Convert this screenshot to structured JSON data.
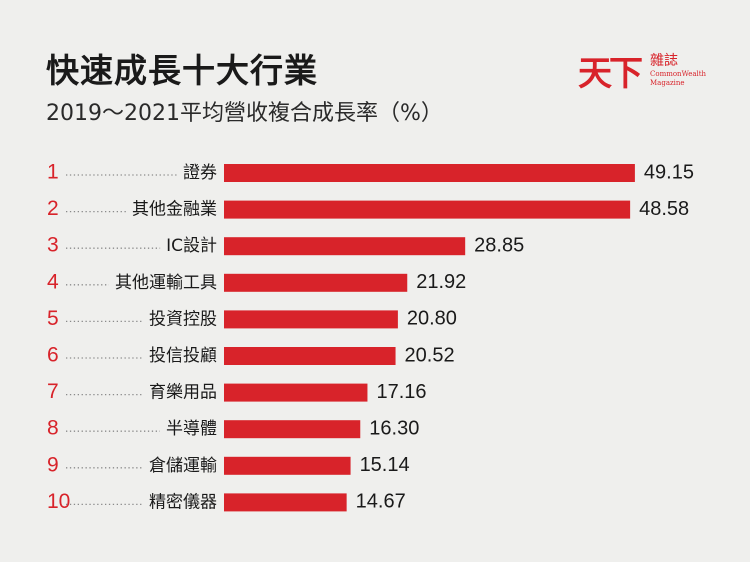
{
  "header": {
    "title": "快速成長十大行業",
    "subtitle": "2019～2021平均營收複合成長率（%）"
  },
  "logo": {
    "mark": "天下",
    "zh": "雜誌",
    "en_line1": "CommonWealth",
    "en_line2": "Magazine"
  },
  "colors": {
    "accent": "#d8232a",
    "background": "#efefed"
  },
  "chart_data": {
    "type": "bar",
    "orientation": "horizontal",
    "title": "快速成長十大行業",
    "subtitle": "2019～2021平均營收複合成長率（%）",
    "ranks": [
      "1",
      "2",
      "3",
      "4",
      "5",
      "6",
      "7",
      "8",
      "9",
      "10"
    ],
    "categories": [
      "證券",
      "其他金融業",
      "IC設計",
      "其他運輸工具",
      "投資控股",
      "投信投顧",
      "育樂用品",
      "半導體",
      "倉儲運輸",
      "精密儀器"
    ],
    "values": [
      49.15,
      48.58,
      28.85,
      21.92,
      20.8,
      20.52,
      17.16,
      16.3,
      15.14,
      14.67
    ],
    "value_labels": [
      "49.15",
      "48.58",
      "28.85",
      "21.92",
      "20.80",
      "20.52",
      "17.16",
      "16.30",
      "15.14",
      "14.67"
    ],
    "grid": false,
    "legend": "none"
  }
}
